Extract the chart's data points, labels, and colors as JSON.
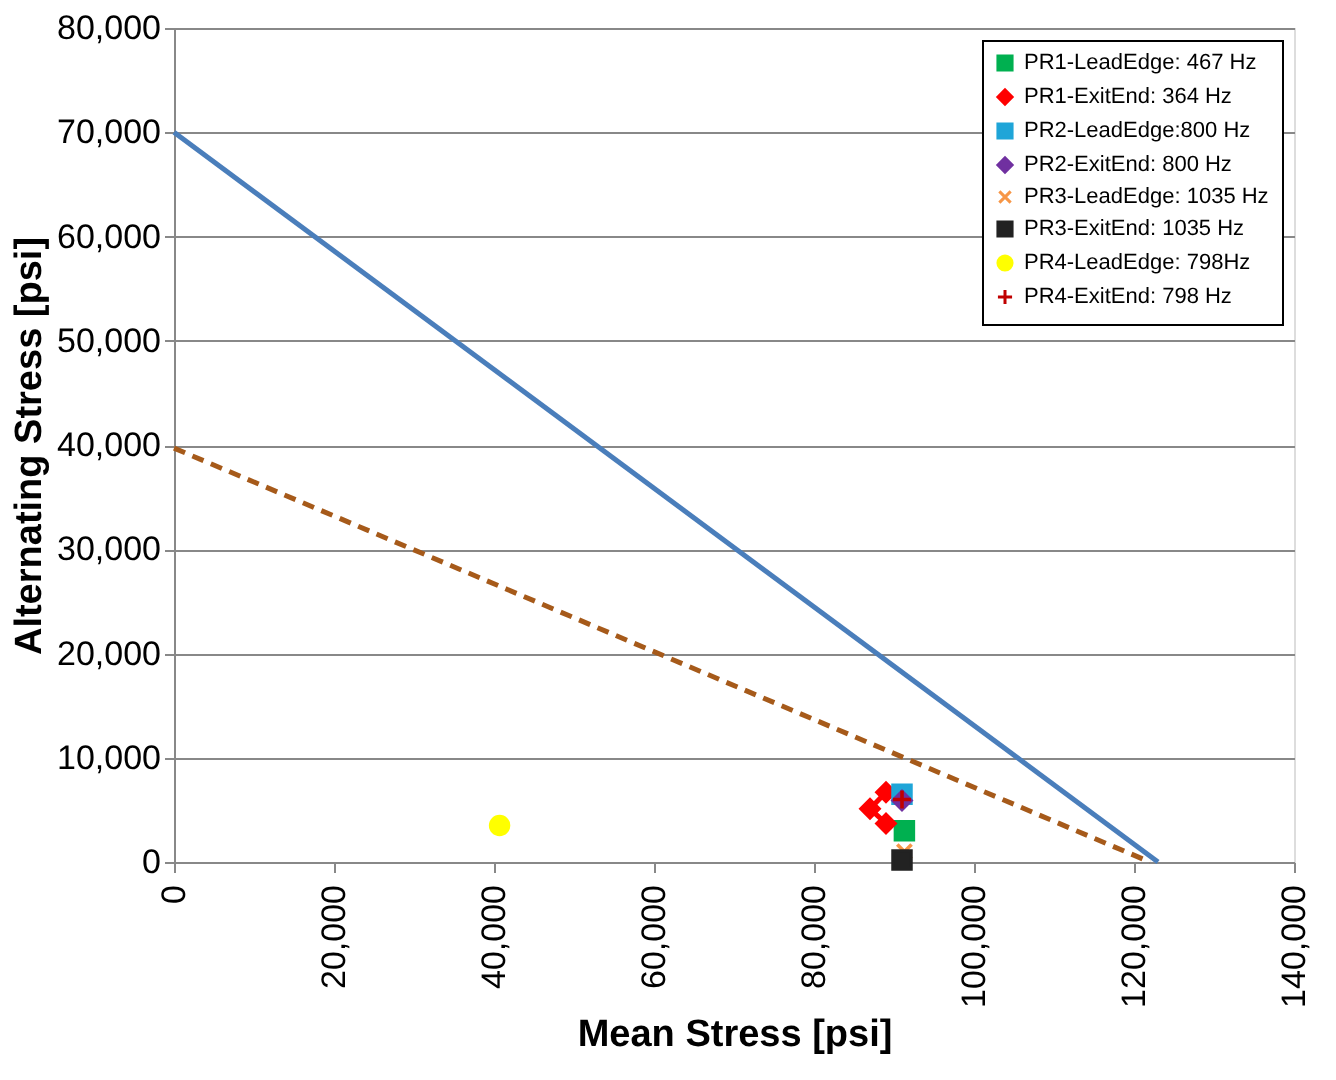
{
  "chart_data": {
    "type": "scatter",
    "xlabel": "Mean Stress [psi]",
    "ylabel": "Alternating Stress [psi]",
    "xlim": [
      0,
      140000
    ],
    "xticks": [
      {
        "value": 0,
        "label": "0"
      },
      {
        "value": 20000,
        "label": "20,000"
      },
      {
        "value": 40000,
        "label": "40,000"
      },
      {
        "value": 60000,
        "label": "60,000"
      },
      {
        "value": 80000,
        "label": "80,000"
      },
      {
        "value": 100000,
        "label": "100,000"
      },
      {
        "value": 120000,
        "label": "120,000"
      },
      {
        "value": 140000,
        "label": "140,000"
      }
    ],
    "ylim": [
      0,
      80000
    ],
    "yticks": [
      {
        "value": 0,
        "label": "0"
      },
      {
        "value": 10000,
        "label": "10,000"
      },
      {
        "value": 20000,
        "label": "20,000"
      },
      {
        "value": 30000,
        "label": "30,000"
      },
      {
        "value": 40000,
        "label": "40,000"
      },
      {
        "value": 50000,
        "label": "50,000"
      },
      {
        "value": 60000,
        "label": "60,000"
      },
      {
        "value": 70000,
        "label": "70,000"
      },
      {
        "value": 80000,
        "label": "80,000"
      }
    ],
    "grid": "y",
    "legend": "top right",
    "series": [
      {
        "type": "line",
        "color": "#4a7ebb",
        "line_style": "solid",
        "marker": "none",
        "x": [
          0,
          123000
        ],
        "values": [
          70000,
          0
        ]
      },
      {
        "type": "line",
        "color": "#a65a1a",
        "line_style": "dashed",
        "marker": "none",
        "x": [
          0,
          122000
        ],
        "values": [
          39700,
          0
        ]
      },
      {
        "name": "PR1-LeadEdge: 467 Hz",
        "color": "#00b050",
        "marker": "square",
        "x": [
          91300
        ],
        "values": [
          3000
        ]
      },
      {
        "type": "line",
        "name": "PR1-ExitEnd: 364 Hz",
        "color": "#ff0000",
        "marker": "diamond",
        "line_style": "solid",
        "x": [
          89000,
          87000,
          89000
        ],
        "values": [
          6700,
          5100,
          3700
        ]
      },
      {
        "name": "PR2-LeadEdge:800 Hz",
        "color": "#1fa5d8",
        "marker": "square",
        "x": [
          91000
        ],
        "values": [
          6500
        ]
      },
      {
        "name": "PR2-ExitEnd: 800 Hz",
        "color": "#7030a0",
        "marker": "diamond",
        "x": [
          91000
        ],
        "values": [
          5900
        ]
      },
      {
        "name": "PR3-LeadEdge: 1035 Hz",
        "color": "#f79646",
        "marker": "cross",
        "x": [
          91300
        ],
        "values": [
          1000
        ]
      },
      {
        "name": "PR3-ExitEnd: 1035 Hz",
        "color": "#222222",
        "marker": "square",
        "x": [
          91000
        ],
        "values": [
          200
        ]
      },
      {
        "name": "PR4-LeadEdge: 798Hz",
        "color": "#ffff00",
        "marker": "circle",
        "x": [
          40700
        ],
        "values": [
          3500
        ]
      },
      {
        "name": "PR4-ExitEnd: 798 Hz",
        "color": "#c00000",
        "marker": "plus",
        "x": [
          91000
        ],
        "values": [
          6000
        ]
      }
    ]
  }
}
